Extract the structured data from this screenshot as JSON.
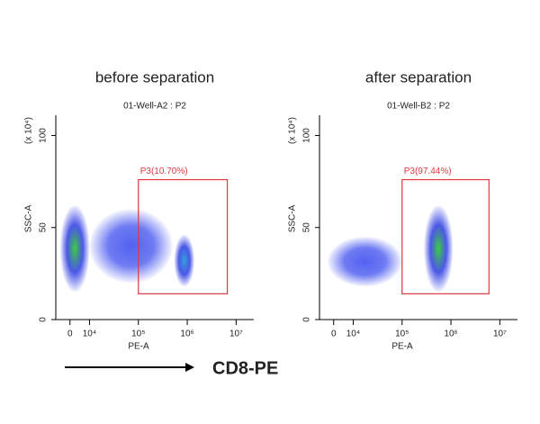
{
  "chart_data": [
    {
      "type": "scatter",
      "heading": "before separation",
      "title": "01-Well-A2 : P2",
      "xlabel": "PE-A",
      "ylabel": "SSC-A",
      "yunit": "(x 10⁴)",
      "xscale": "biexponential",
      "xlim": [
        -7250,
        23000000
      ],
      "ylim": [
        0,
        111
      ],
      "xticks": [
        0,
        {
          "value": 10000,
          "label": "10⁴"
        },
        {
          "value": 100000,
          "label": "10⁵"
        },
        {
          "value": 1000000,
          "label": "10⁶"
        },
        {
          "value": 10000000,
          "label": "10⁷"
        }
      ],
      "yticks": [
        0,
        50,
        100
      ],
      "populations": [
        {
          "xrange": [
            -5000,
            10000
          ],
          "yrange": [
            15,
            62
          ],
          "core_color": "#33cc33",
          "edge_color": "#1f2fe0"
        },
        {
          "xrange": [
            10000,
            500000
          ],
          "yrange": [
            20,
            60
          ],
          "core_color": "#4a5af0",
          "edge_color": "#4a5af0"
        },
        {
          "xrange": [
            540000,
            1400000
          ],
          "yrange": [
            18,
            46
          ],
          "core_color": "#2a9fd8",
          "edge_color": "#1f2fe0"
        }
      ],
      "gate": {
        "label": "P3(10.70%)",
        "xrange": [
          100000,
          6600000
        ],
        "yrange": [
          14,
          76
        ],
        "color": "#e0393e"
      }
    },
    {
      "type": "scatter",
      "heading": "after separation",
      "title": "01-Well-B2 : P2",
      "xlabel": "PE-A",
      "ylabel": "SSC-A",
      "yunit": "(x 10⁴)",
      "xscale": "biexponential",
      "xlim": [
        -7250,
        23000000
      ],
      "ylim": [
        0,
        111
      ],
      "xticks": [
        0,
        {
          "value": 10000,
          "label": "10⁴"
        },
        {
          "value": 100000,
          "label": "10⁵"
        },
        {
          "value": 1000000,
          "label": "10⁶"
        },
        {
          "value": 10000000,
          "label": "10⁷"
        }
      ],
      "yticks": [
        0,
        50,
        100
      ],
      "populations": [
        {
          "xrange": [
            -3000,
            100000
          ],
          "yrange": [
            18,
            45
          ],
          "core_color": "#4a5af0",
          "edge_color": "#4a5af0"
        },
        {
          "xrange": [
            280000,
            1100000
          ],
          "yrange": [
            15,
            62
          ],
          "core_color": "#33cc33",
          "edge_color": "#1f2fe0"
        }
      ],
      "gate": {
        "label": "P3(97.44%)",
        "xrange": [
          100000,
          6000000
        ],
        "yrange": [
          14,
          76
        ],
        "color": "#e0393e"
      }
    }
  ],
  "footer_label": "CD8-PE"
}
